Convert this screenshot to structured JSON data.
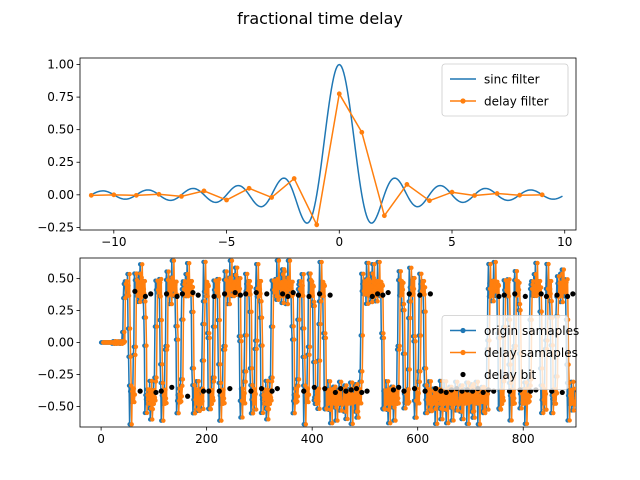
{
  "figure": {
    "suptitle": "fractional time delay"
  },
  "colors": {
    "blue": "#1f77b4",
    "orange": "#ff7f0e",
    "black": "#000000"
  },
  "chart_data": [
    {
      "type": "line",
      "title": "",
      "xlabel": "",
      "ylabel": "",
      "xlim": [
        -11.5,
        10.5
      ],
      "ylim": [
        -0.27,
        1.05
      ],
      "xticks": [
        -10,
        -5,
        0,
        5,
        10
      ],
      "yticks": [
        -0.25,
        0.0,
        0.25,
        0.5,
        0.75,
        1.0
      ],
      "xtick_labels": [
        "−10",
        "−5",
        "0",
        "5",
        "10"
      ],
      "ytick_labels": [
        "−0.25",
        "0.00",
        "0.25",
        "0.50",
        "0.75",
        "1.00"
      ],
      "grid": false,
      "legend": "top-right",
      "series": [
        {
          "name": "sinc filter",
          "color": "#1f77b4",
          "marker": "none",
          "function": "sinc",
          "x_range": [
            -11,
            9.9
          ],
          "step": 0.05
        },
        {
          "name": "delay filter",
          "color": "#ff7f0e",
          "marker": "circle",
          "x": [
            -11,
            -10,
            -9,
            -8,
            -7,
            -6,
            -5,
            -4,
            -3,
            -2,
            -1,
            0,
            1,
            2,
            3,
            4,
            5,
            6,
            7,
            8,
            9
          ],
          "y": [
            -0.004,
            0.0,
            -0.004,
            0.004,
            -0.012,
            0.03,
            -0.04,
            0.05,
            -0.02,
            0.125,
            -0.23,
            0.775,
            0.48,
            -0.16,
            0.08,
            -0.045,
            0.02,
            -0.005,
            0.01,
            -0.003,
            0.0
          ]
        }
      ]
    },
    {
      "type": "line",
      "title": "",
      "xlabel": "",
      "ylabel": "",
      "xlim": [
        -40,
        900
      ],
      "ylim": [
        -0.66,
        0.66
      ],
      "xticks": [
        0,
        200,
        400,
        600,
        800
      ],
      "yticks": [
        -0.5,
        -0.25,
        0.0,
        0.25,
        0.5
      ],
      "xtick_labels": [
        "0",
        "200",
        "400",
        "600",
        "800"
      ],
      "ytick_labels": [
        "−0.50",
        "−0.25",
        "0.00",
        "0.25",
        "0.50"
      ],
      "grid": false,
      "legend": "center-right",
      "samples_per_bit": 10,
      "amplitude": 0.42,
      "lead_in_samples": 40,
      "bits": [
        1,
        0,
        1,
        1,
        0,
        0,
        1,
        0,
        1,
        1,
        0,
        1,
        1,
        0,
        0,
        1,
        0,
        1,
        0,
        1,
        1,
        1,
        0,
        1,
        0,
        1,
        0,
        0,
        1,
        1,
        1,
        1,
        0,
        1,
        0,
        1,
        0,
        1,
        0,
        0,
        0,
        0,
        0,
        0,
        0,
        1,
        1,
        1,
        1,
        0,
        0,
        0,
        1,
        0,
        1,
        0,
        1,
        0,
        0,
        0,
        0,
        0,
        0,
        0,
        0,
        0,
        0,
        0,
        0,
        1,
        1,
        0,
        1,
        0,
        1,
        0,
        0,
        1,
        1,
        0,
        1,
        0,
        1,
        1,
        0,
        0
      ],
      "series": [
        {
          "name": "origin samaples",
          "color": "#1f77b4",
          "marker": "circle",
          "delay": 0
        },
        {
          "name": "delay samaples",
          "color": "#ff7f0e",
          "marker": "circle",
          "delay": 4
        },
        {
          "name": "delay bit",
          "color": "#000000",
          "marker": "circle",
          "linestyle": "none",
          "x_start": 64,
          "x_step": 10,
          "values": [
            0.4,
            -0.38,
            0.36,
            0.38,
            -0.39,
            -0.38,
            0.38,
            -0.35,
            0.36,
            0.38,
            -0.42,
            0.39,
            0.37,
            -0.38,
            -0.38,
            0.36,
            -0.38,
            0.38,
            -0.36,
            0.39,
            0.37,
            0.38,
            -0.38,
            0.39,
            -0.36,
            0.38,
            -0.38,
            -0.36,
            0.38,
            0.36,
            0.39,
            0.37,
            -0.38,
            0.36,
            -0.35,
            0.38,
            -0.36,
            0.37,
            -0.39,
            -0.36,
            -0.38,
            -0.37,
            -0.36,
            -0.39,
            -0.38,
            0.36,
            0.38,
            0.37,
            0.39,
            -0.37,
            -0.35,
            -0.38,
            0.38,
            -0.36,
            0.37,
            -0.38,
            0.38,
            -0.36,
            -0.38,
            -0.39,
            -0.37,
            -0.36,
            -0.38,
            -0.37,
            -0.38,
            -0.36,
            -0.39,
            -0.37,
            -0.38,
            0.36,
            0.37,
            -0.38,
            0.38,
            -0.37,
            0.36,
            -0.38,
            -0.37,
            0.38,
            0.36,
            -0.38,
            0.37,
            -0.39,
            0.36,
            0.38,
            -0.38,
            -0.37
          ]
        }
      ]
    }
  ]
}
